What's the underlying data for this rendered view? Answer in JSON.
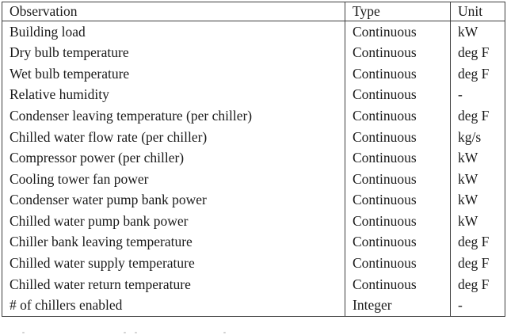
{
  "table": {
    "columns": [
      "Observation",
      "Type",
      "Unit"
    ],
    "rows": [
      [
        "Building load",
        "Continuous",
        "kW"
      ],
      [
        "Dry bulb temperature",
        "Continuous",
        "deg F"
      ],
      [
        "Wet bulb temperature",
        "Continuous",
        "deg F"
      ],
      [
        "Relative humidity",
        "Continuous",
        "-"
      ],
      [
        "Condenser leaving temperature (per chiller)",
        "Continuous",
        "deg F"
      ],
      [
        "Chilled water flow rate (per chiller)",
        "Continuous",
        "kg/s"
      ],
      [
        "Compressor power (per chiller)",
        "Continuous",
        "kW"
      ],
      [
        "Cooling tower fan power",
        "Continuous",
        "kW"
      ],
      [
        "Condenser water pump bank power",
        "Continuous",
        "kW"
      ],
      [
        "Chilled water pump bank power",
        "Continuous",
        "kW"
      ],
      [
        "Chiller bank leaving temperature",
        "Continuous",
        "deg F"
      ],
      [
        "Chilled water supply temperature",
        "Continuous",
        "deg F"
      ],
      [
        "Chilled water return temperature",
        "Continuous",
        "deg F"
      ],
      [
        "# of chillers enabled",
        "Integer",
        "-"
      ]
    ]
  },
  "colors": {
    "text": "#1a1a1a",
    "border": "#3d3d3d",
    "background": "#ffffff"
  }
}
